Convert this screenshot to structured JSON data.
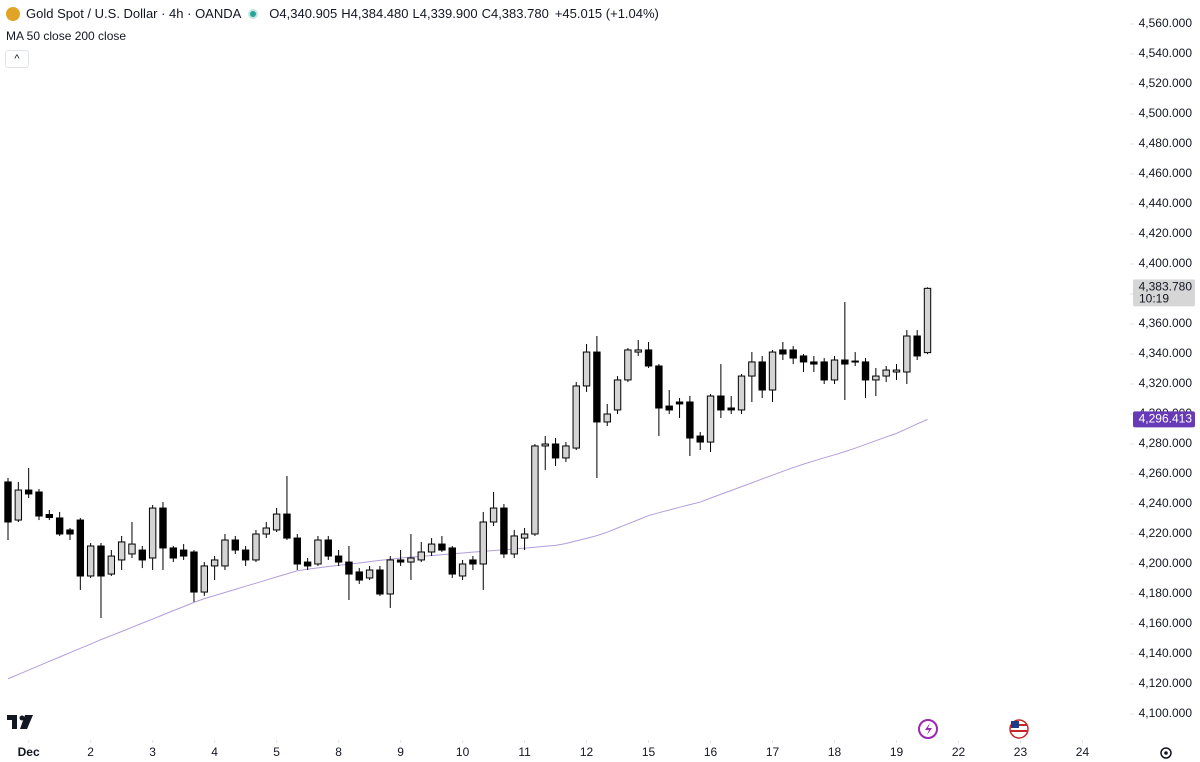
{
  "chart_data": {
    "type": "candlestick",
    "title": "Gold Spot / U.S. Dollar · 4h · OANDA",
    "indicator": "MA 50 close 200 close",
    "legend_values": [
      {
        "label": "O",
        "value": "4,340.905"
      },
      {
        "label": "H",
        "value": "4,384.480"
      },
      {
        "label": "L",
        "value": "4,339.900"
      },
      {
        "label": "C",
        "value": "4,383.780"
      }
    ],
    "change": "+45.015 (+1.04%)",
    "up_color": "#d4d4d4",
    "down_color": "#000000",
    "xlim": [
      -0.7744,
      108.6
    ],
    "xticks": [
      {
        "value": 2,
        "label": "Dec"
      },
      {
        "value": 8,
        "label": "2"
      },
      {
        "value": 14,
        "label": "3"
      },
      {
        "value": 20,
        "label": "4"
      },
      {
        "value": 26,
        "label": "5"
      },
      {
        "value": 32,
        "label": "8"
      },
      {
        "value": 38,
        "label": "9"
      },
      {
        "value": 44,
        "label": "10"
      },
      {
        "value": 50,
        "label": "11"
      },
      {
        "value": 56,
        "label": "12"
      },
      {
        "value": 62,
        "label": "15"
      },
      {
        "value": 68,
        "label": "16"
      },
      {
        "value": 74,
        "label": "17"
      },
      {
        "value": 80,
        "label": "18"
      },
      {
        "value": 86,
        "label": "19"
      },
      {
        "value": 92,
        "label": "22"
      },
      {
        "value": 98,
        "label": "23"
      },
      {
        "value": 104,
        "label": "24"
      }
    ],
    "ylim": [
      4082.667,
      4576
    ],
    "yticks": [
      {
        "value": 4100,
        "label": "4,100.000"
      },
      {
        "value": 4120,
        "label": "4,120.000"
      },
      {
        "value": 4140,
        "label": "4,140.000"
      },
      {
        "value": 4160,
        "label": "4,160.000"
      },
      {
        "value": 4180,
        "label": "4,180.000"
      },
      {
        "value": 4200,
        "label": "4,200.000"
      },
      {
        "value": 4220,
        "label": "4,220.000"
      },
      {
        "value": 4240,
        "label": "4,240.000"
      },
      {
        "value": 4260,
        "label": "4,260.000"
      },
      {
        "value": 4280,
        "label": "4,280.000"
      },
      {
        "value": 4300,
        "label": "4,300.000"
      },
      {
        "value": 4320,
        "label": "4,320.000"
      },
      {
        "value": 4340,
        "label": "4,340.000"
      },
      {
        "value": 4360,
        "label": "4,360.000"
      },
      {
        "value": 4380,
        "label": "4,380.000"
      },
      {
        "value": 4400,
        "label": "4,400.000"
      },
      {
        "value": 4420,
        "label": "4,420.000"
      },
      {
        "value": 4440,
        "label": "4,440.000"
      },
      {
        "value": 4460,
        "label": "4,460.000"
      },
      {
        "value": 4480,
        "label": "4,480.000"
      },
      {
        "value": 4500,
        "label": "4,500.000"
      },
      {
        "value": 4520,
        "label": "4,520.000"
      },
      {
        "value": 4540,
        "label": "4,540.000"
      },
      {
        "value": 4560,
        "label": "4,560.000"
      }
    ],
    "open": [
      4254.7,
      4229.3,
      4249.3,
      4248,
      4233,
      4230.7,
      4222.7,
      4229.3,
      4192,
      4212,
      4193.3,
      4202.7,
      4206.7,
      4209.3,
      4204,
      4237.3,
      4210.7,
      4209.3,
      4208,
      4181.3,
      4198.7,
      4198.7,
      4216,
      4209.3,
      4202.7,
      4220,
      4222.7,
      4233.3,
      4217.3,
      4201.3,
      4200,
      4216,
      4205.3,
      4201.3,
      4194.7,
      4190.7,
      4196,
      4180,
      4202.7,
      4201.3,
      4202.7,
      4208,
      4213.3,
      4210.7,
      4192,
      4202.7,
      4200,
      4228,
      4237.3,
      4206.7,
      4217.3,
      4220,
      4278.7,
      4280,
      4270.7,
      4277.3,
      4318.7,
      4341.3,
      4294.7,
      4302.7,
      4322.7,
      4341.3,
      4342.7,
      4332,
      4305.3,
      4308,
      4308,
      4285.3,
      4281.3,
      4312,
      4304,
      4302.7,
      4325.3,
      4334.7,
      4316,
      4342.7,
      4342.7,
      4338.7,
      4334.7,
      4334.7,
      4322.7,
      4336,
      4334.7,
      4334.7,
      4322.7,
      4325.3,
      4328,
      4328,
      4352,
      4340.905
    ],
    "high": [
      4257.3,
      4254.7,
      4264,
      4250,
      4236,
      4234.7,
      4224,
      4230.7,
      4214,
      4214,
      4209.3,
      4218.7,
      4228,
      4212,
      4239.3,
      4241.3,
      4212,
      4213.3,
      4209.3,
      4201.3,
      4205.3,
      4220,
      4218.7,
      4212,
      4222.7,
      4228,
      4237.3,
      4258.7,
      4220,
      4204,
      4218.7,
      4218.7,
      4209.3,
      4212,
      4197.3,
      4198.7,
      4198.7,
      4205.3,
      4209.3,
      4220,
      4214.7,
      4217.3,
      4218.7,
      4212,
      4202.7,
      4205.3,
      4234.7,
      4248,
      4240,
      4222.7,
      4224,
      4280,
      4285.3,
      4284,
      4281.3,
      4321.3,
      4346.7,
      4352,
      4306.7,
      4325.3,
      4344,
      4349.3,
      4348,
      4333.3,
      4316,
      4310.7,
      4312,
      4288,
      4313.3,
      4333.3,
      4312,
      4326.7,
      4341.3,
      4338.7,
      4342.7,
      4348,
      4345.3,
      4340,
      4338.7,
      4337.3,
      4338.7,
      4374.7,
      4341.3,
      4337.3,
      4330.7,
      4332,
      4333.3,
      4356,
      4356,
      4384.48
    ],
    "low": [
      4216,
      4228,
      4244,
      4229.3,
      4229.3,
      4218.7,
      4216,
      4182.7,
      4190.7,
      4164,
      4192,
      4196,
      4204,
      4197.3,
      4196,
      4196,
      4201.3,
      4202.7,
      4174.7,
      4178.7,
      4189.3,
      4196,
      4206.7,
      4198.7,
      4201.3,
      4217.3,
      4221.3,
      4216,
      4196,
      4196,
      4198.7,
      4202.7,
      4198.7,
      4176,
      4186.7,
      4189.3,
      4178.7,
      4170.7,
      4198.7,
      4189.3,
      4201.3,
      4205.3,
      4208,
      4190.7,
      4189.3,
      4196,
      4182.7,
      4225.3,
      4204,
      4204,
      4209.3,
      4218.7,
      4262.7,
      4265.3,
      4268,
      4276,
      4314.7,
      4257.3,
      4292,
      4300,
      4321.3,
      4338.7,
      4330.7,
      4285.3,
      4300,
      4297.3,
      4272,
      4276,
      4274.7,
      4297.3,
      4300,
      4300,
      4308,
      4310.7,
      4308,
      4336,
      4333.3,
      4328,
      4328,
      4320,
      4320,
      4309.3,
      4332,
      4310.7,
      4312,
      4321.3,
      4322.7,
      4320,
      4336,
      4339.9
    ],
    "close": [
      4228,
      4249.3,
      4246.7,
      4232,
      4231,
      4220,
      4220,
      4192,
      4212,
      4192,
      4205.3,
      4214.7,
      4213.3,
      4202.7,
      4237.3,
      4210.7,
      4204,
      4205.3,
      4181.3,
      4198.7,
      4202.7,
      4216,
      4209.3,
      4202.7,
      4220,
      4224,
      4233.3,
      4217.3,
      4200,
      4198.7,
      4216,
      4205.3,
      4201.3,
      4193.3,
      4189.3,
      4196,
      4180,
      4202.7,
      4201.3,
      4204,
      4208,
      4213.3,
      4209.3,
      4193.3,
      4200,
      4200,
      4228,
      4237.3,
      4206.7,
      4218.7,
      4220,
      4278.7,
      4280,
      4270.7,
      4278.7,
      4318.7,
      4341.3,
      4294.7,
      4300,
      4322.7,
      4342.7,
      4342.7,
      4332,
      4304,
      4302.7,
      4306.7,
      4284,
      4281.3,
      4312,
      4302.7,
      4302.7,
      4325.3,
      4334.7,
      4316,
      4341.3,
      4340,
      4337.3,
      4334.7,
      4333.3,
      4322.7,
      4336,
      4333.3,
      4335.3,
      4322.7,
      4325.3,
      4329.3,
      4329.3,
      4352,
      4338.7,
      4383.78
    ],
    "ma": {
      "color": "#b39ddb",
      "values": [
        4123.5,
        4126.4,
        4129.3,
        4132.2,
        4135.1,
        4138,
        4140.9,
        4143.8,
        4146.6,
        4149.6,
        4152.3,
        4155,
        4157.8,
        4160.6,
        4163.3,
        4166.1,
        4168.9,
        4171.6,
        4174.4,
        4176.9,
        4178.9,
        4181,
        4183.1,
        4185.2,
        4187.2,
        4189.3,
        4191.4,
        4193.4,
        4195.5,
        4196.6,
        4197.4,
        4198.3,
        4199.1,
        4199.9,
        4200.7,
        4201.6,
        4202.4,
        4203.2,
        4204,
        4204.6,
        4205.1,
        4205.7,
        4206.2,
        4206.8,
        4207.3,
        4207.9,
        4208.4,
        4209,
        4209.4,
        4210,
        4210.6,
        4211.2,
        4211.8,
        4212.4,
        4213.7,
        4215.4,
        4217.1,
        4218.9,
        4221.2,
        4224,
        4226.7,
        4229.5,
        4232.3,
        4234.2,
        4236,
        4237.8,
        4239.6,
        4241.3,
        4243.9,
        4246.5,
        4249,
        4251.6,
        4254.1,
        4256.7,
        4259.2,
        4261.8,
        4264.3,
        4266.6,
        4268.7,
        4270.8,
        4272.8,
        4274.9,
        4277.2,
        4279.7,
        4282.2,
        4284.7,
        4287.1,
        4290.2,
        4293.4,
        4296.413
      ]
    },
    "last_price_label": "4,383.780",
    "countdown": "10:19",
    "ma_label": "4,296.413",
    "ma_tag_color": "#673ab7"
  }
}
